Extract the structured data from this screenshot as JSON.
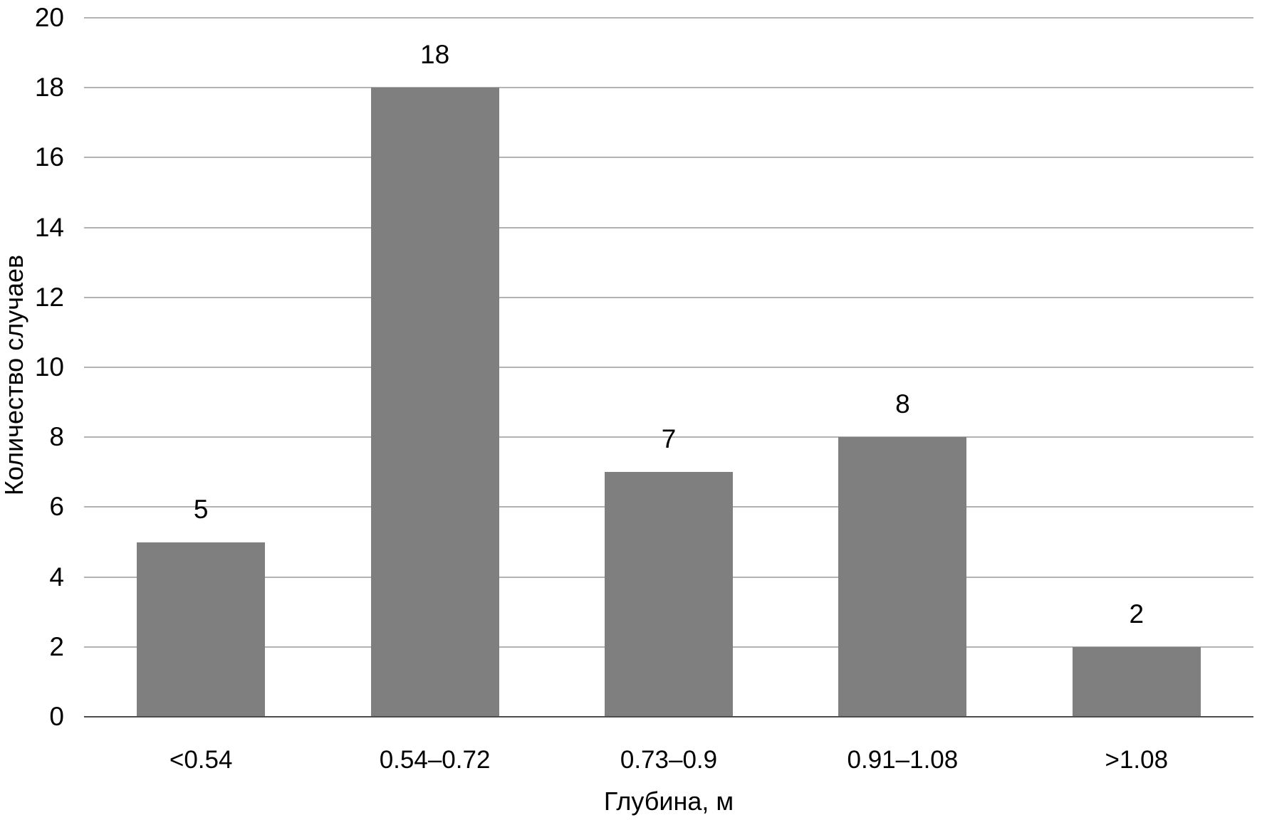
{
  "chart_data": {
    "type": "bar",
    "title": "",
    "categories": [
      "<0.54",
      "0.54–0.72",
      "0.73–0.9",
      "0.91–1.08",
      ">1.08"
    ],
    "values": [
      5,
      18,
      7,
      8,
      2
    ],
    "value_labels": [
      "5",
      "18",
      "7",
      "8",
      "2"
    ],
    "xlabel": "Глубина, м",
    "ylabel": "Количество случаев",
    "ylim": [
      0,
      20
    ],
    "ytick_step": 2,
    "ytick_labels": [
      "0",
      "2",
      "4",
      "6",
      "8",
      "10",
      "12",
      "14",
      "16",
      "18",
      "20"
    ],
    "grid": true,
    "legend": "none",
    "bar_color": "#7f7f7f",
    "gridline_color": "#b3b3b3",
    "axis_line_color": "#4d4d4d",
    "text_color": "#000000"
  }
}
